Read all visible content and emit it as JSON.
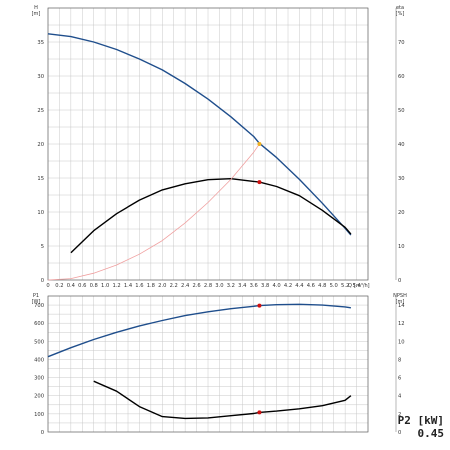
{
  "p2": {
    "label": "P2 [kW]",
    "value": "0.45"
  },
  "chart_data": [
    {
      "type": "line",
      "title": "",
      "xlabel": "Q [m³/h]",
      "x_axis_symbol": "Q",
      "x_axis_unit": "[m³/h]",
      "left_axis_symbol": "H",
      "left_axis_unit": "[m]",
      "right_axis_symbol": "eta",
      "right_axis_unit": "[%]",
      "xlim": [
        0,
        5.6
      ],
      "x_ticks": [
        0,
        0.2,
        0.4,
        0.6,
        0.8,
        1.0,
        1.2,
        1.4,
        1.6,
        1.8,
        2.0,
        2.2,
        2.4,
        2.6,
        2.8,
        3.0,
        3.2,
        3.4,
        3.6,
        3.8,
        4.0,
        4.2,
        4.4,
        4.6,
        4.8,
        5.0,
        5.2,
        5.4
      ],
      "x_tick_labels": [
        "0",
        "0.2",
        "0.4",
        "0.6",
        "0.8",
        "1.0",
        "1.2",
        "1.4",
        "1.6",
        "1.8",
        "2.0",
        "2.2",
        "2.4",
        "2.6",
        "2.8",
        "3.0",
        "3.2",
        "3.4",
        "3.6",
        "3.8",
        "4.0",
        "4.2",
        "4.4",
        "4.6",
        "4.8",
        "5.0",
        "5.2",
        "5.4"
      ],
      "ylim_left": [
        0,
        40
      ],
      "y_ticks_left": [
        0,
        5,
        10,
        15,
        20,
        25,
        30,
        35
      ],
      "ylim_right": [
        0,
        80
      ],
      "y_ticks_right": [
        0,
        10,
        20,
        30,
        40,
        50,
        60,
        70
      ],
      "grid": true,
      "series": [
        {
          "axis": "left",
          "color": "#1f4e8c",
          "x": [
            0,
            0.4,
            0.8,
            1.2,
            1.6,
            2.0,
            2.4,
            2.8,
            3.2,
            3.6,
            3.7,
            4.0,
            4.4,
            4.8,
            5.2,
            5.3
          ],
          "y": [
            36.2,
            35.8,
            35.0,
            33.9,
            32.5,
            30.9,
            28.9,
            26.6,
            24.0,
            21.1,
            20.1,
            18.0,
            14.8,
            11.3,
            7.6,
            6.6
          ]
        },
        {
          "axis": "right",
          "color": "#000000",
          "x": [
            0.4,
            0.8,
            1.2,
            1.6,
            2.0,
            2.4,
            2.8,
            3.2,
            3.6,
            3.7,
            4.0,
            4.4,
            4.8,
            5.2,
            5.3
          ],
          "y": [
            8,
            14.5,
            19.5,
            23.5,
            26.5,
            28.3,
            29.5,
            29.8,
            29.0,
            28.8,
            27.5,
            24.8,
            20.5,
            15.5,
            13.5
          ]
        },
        {
          "axis": "left",
          "color": "#f0a0a0",
          "x": [
            0,
            0.4,
            0.8,
            1.2,
            1.6,
            2.0,
            2.4,
            2.8,
            3.2,
            3.6,
            3.7
          ],
          "y": [
            0,
            0.2,
            1.0,
            2.2,
            3.8,
            5.8,
            8.4,
            11.4,
            14.8,
            18.8,
            20.0
          ]
        }
      ],
      "markers": [
        {
          "axis": "left",
          "x": 3.7,
          "y": 20.0,
          "color": "#f0b020"
        },
        {
          "axis": "right",
          "x": 3.7,
          "y": 28.8,
          "color": "#d01010"
        }
      ]
    },
    {
      "type": "line",
      "title": "",
      "left_axis_symbol": "P1",
      "left_axis_unit": "[W]",
      "right_axis_symbol": "NPSH",
      "right_axis_unit": "[m]",
      "xlim": [
        0,
        5.6
      ],
      "ylim_left": [
        0,
        750
      ],
      "y_ticks_left": [
        0,
        100,
        200,
        300,
        400,
        500,
        600,
        700
      ],
      "ylim_right": [
        0,
        15
      ],
      "y_ticks_right": [
        0,
        2,
        4,
        6,
        8,
        10,
        12,
        14
      ],
      "grid": true,
      "series": [
        {
          "axis": "left",
          "color": "#1f4e8c",
          "x": [
            0,
            0.4,
            0.8,
            1.2,
            1.6,
            2.0,
            2.4,
            2.8,
            3.2,
            3.6,
            3.7,
            4.0,
            4.4,
            4.8,
            5.2,
            5.3
          ],
          "y": [
            415,
            465,
            510,
            550,
            585,
            615,
            642,
            663,
            680,
            693,
            697,
            702,
            704,
            700,
            690,
            685
          ]
        },
        {
          "axis": "left",
          "color": "#000000",
          "x": [
            0.8,
            1.2,
            1.6,
            2.0,
            2.4,
            2.8,
            3.2,
            3.6,
            3.7,
            4.0,
            4.4,
            4.8,
            5.2,
            5.3
          ],
          "y": [
            280,
            225,
            140,
            85,
            75,
            78,
            90,
            102,
            108,
            115,
            128,
            145,
            175,
            200
          ]
        }
      ],
      "markers": [
        {
          "axis": "left",
          "x": 3.7,
          "y": 697,
          "color": "#d01010"
        },
        {
          "axis": "left",
          "x": 3.7,
          "y": 108,
          "color": "#d01010"
        }
      ]
    }
  ]
}
